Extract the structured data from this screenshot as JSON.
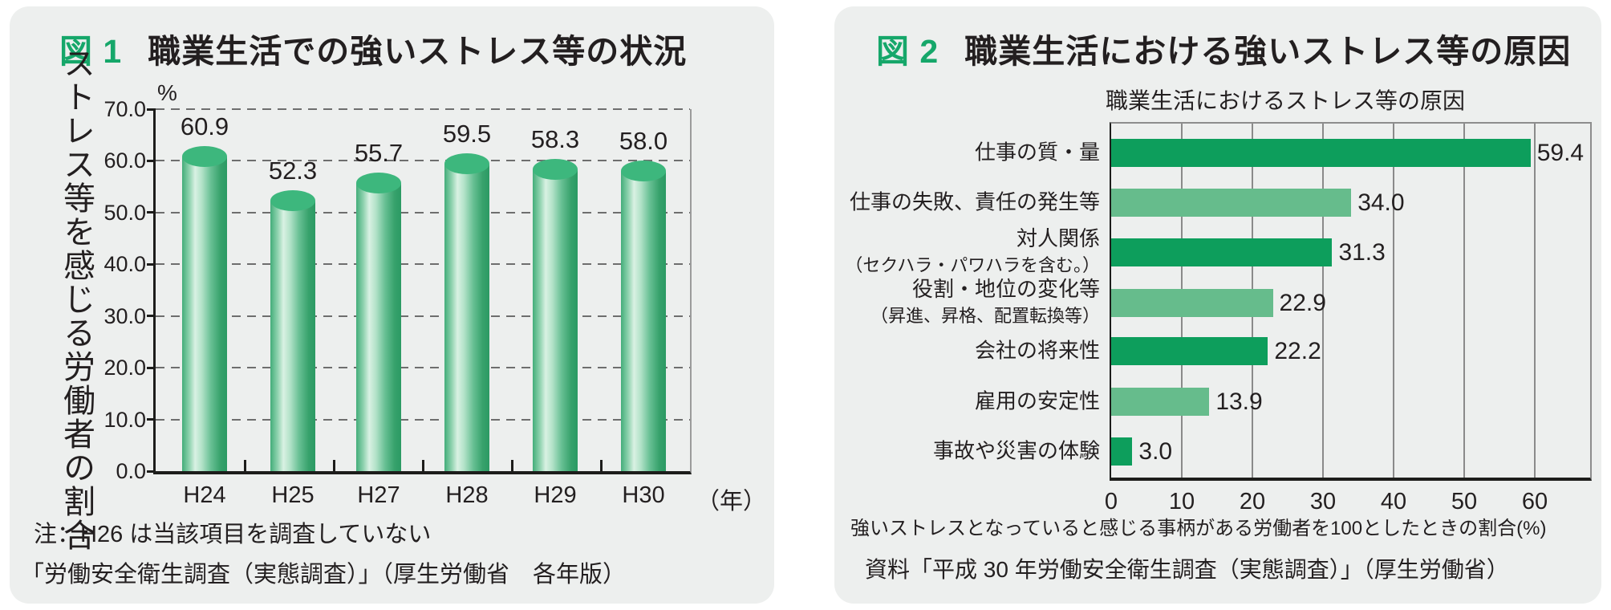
{
  "page": {
    "background": "#ffffff",
    "panel_background": "#edefee",
    "accent_green": "#16a76a",
    "dark_bar_green": "#0d9e5c",
    "light_bar_green": "#66bc8c",
    "cylinder_green": "#3db77d",
    "text_color": "#231f20"
  },
  "fig1": {
    "label": "図 1",
    "title": "職業生活での強いストレス等の状況",
    "note": "注：H26 は当該項目を調査していない",
    "source": "「労働安全衛生調査（実態調査）」（厚生労働省　各年版）"
  },
  "fig2": {
    "label": "図 2",
    "title": "職業生活における強いストレス等の原因",
    "caption": "強いストレスとなっていると感じる事柄がある労働者を100としたときの割合(%)",
    "source": "資料「平成 30 年労働安全衛生調査（実態調査）」（厚生労働省）"
  },
  "chart_data": [
    {
      "type": "bar",
      "figure": "図1",
      "title": "職業生活での強いストレス等の状況",
      "categories": [
        "H24",
        "H25",
        "H27",
        "H28",
        "H29",
        "H30"
      ],
      "values": [
        60.9,
        52.3,
        55.7,
        59.5,
        58.3,
        58.0
      ],
      "value_labels": [
        "60.9",
        "52.3",
        "55.7",
        "59.5",
        "58.3",
        "58.0"
      ],
      "ylabel": "ストレス等を感じる労働者の割合",
      "xlabel": "（年）",
      "unit": "%",
      "ylim": [
        0,
        70
      ],
      "yticks": [
        0,
        10,
        20,
        30,
        40,
        50,
        60,
        70
      ],
      "ytick_labels": [
        "0.0",
        "10.0",
        "20.0",
        "30.0",
        "40.0",
        "50.0",
        "60.0",
        "70.0"
      ],
      "grid": "horizontal-dashed",
      "bar_style": "3d-cylinder-green",
      "legend": "none"
    },
    {
      "type": "bar",
      "orientation": "horizontal",
      "figure": "図2",
      "title": "職業生活におけるストレス等の原因",
      "categories": [
        "仕事の質・量",
        "仕事の失敗、責任の発生等",
        "対人関係（セクハラ・パワハラを含む。）",
        "役割・地位の変化等（昇進、昇格、配置転換等）",
        "会社の将来性",
        "雇用の安定性",
        "事故や災害の体験"
      ],
      "category_lines": [
        [
          "仕事の質・量"
        ],
        [
          "仕事の失敗、責任の発生等"
        ],
        [
          "対人関係",
          "（セクハラ・パワハラを含む。）"
        ],
        [
          "役割・地位の変化等",
          "（昇進、昇格、配置転換等）"
        ],
        [
          "会社の将来性"
        ],
        [
          "雇用の安定性"
        ],
        [
          "事故や災害の体験"
        ]
      ],
      "values": [
        59.4,
        34.0,
        31.3,
        22.9,
        22.2,
        13.9,
        3.0
      ],
      "value_labels": [
        "59.4",
        "34.0",
        "31.3",
        "22.9",
        "22.2",
        "13.9",
        "3.0"
      ],
      "xlim": [
        0,
        68
      ],
      "xticks": [
        0,
        10,
        20,
        30,
        40,
        50,
        60
      ],
      "xtick_labels": [
        "0",
        "10",
        "20",
        "30",
        "40",
        "50",
        "60"
      ],
      "grid": "vertical-solid",
      "bar_colors": [
        "#0d9e5c",
        "#66bc8c",
        "#0d9e5c",
        "#66bc8c",
        "#0d9e5c",
        "#66bc8c",
        "#0d9e5c"
      ],
      "legend": "none"
    }
  ]
}
